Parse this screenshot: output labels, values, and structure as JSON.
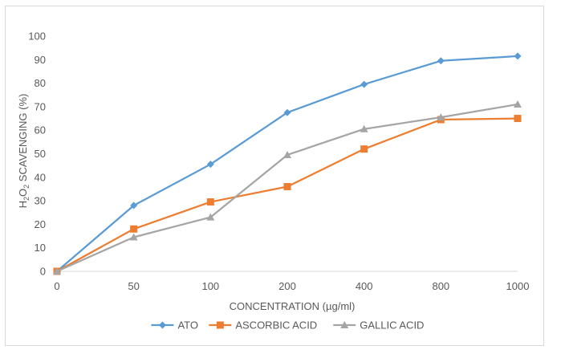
{
  "chart_data": {
    "type": "line",
    "categories": [
      "0",
      "50",
      "100",
      "200",
      "400",
      "800",
      "1000"
    ],
    "series": [
      {
        "name": "ATO",
        "values": [
          0,
          28,
          45.5,
          67.5,
          79.5,
          89.5,
          91.5
        ],
        "color": "#5b9bd5",
        "marker": "diamond"
      },
      {
        "name": "ASCORBIC ACID",
        "values": [
          0,
          18,
          29.5,
          36,
          52,
          64.5,
          65
        ],
        "color": "#ed7d31",
        "marker": "square"
      },
      {
        "name": "GALLIC ACID",
        "values": [
          0,
          14.5,
          23,
          49.5,
          60.5,
          65.5,
          71
        ],
        "color": "#a5a5a5",
        "marker": "triangle"
      }
    ],
    "yticks": [
      "0",
      "10",
      "20",
      "30",
      "40",
      "50",
      "60",
      "70",
      "80",
      "90",
      "100"
    ],
    "ylim": [
      0,
      100
    ],
    "xlabel": "CONCENTRATION (µg/ml)",
    "ylabel": {
      "p1": "H",
      "s1": "2",
      "p2": "O",
      "s2": "2",
      "p3": " SCAVENGING (%)"
    },
    "legend_position": "bottom",
    "grid": false
  }
}
